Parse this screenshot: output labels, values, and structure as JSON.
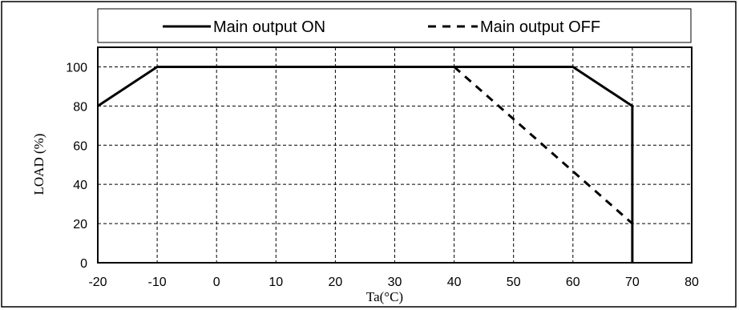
{
  "chart_data": {
    "type": "line",
    "xlabel": "Ta(°C)",
    "ylabel": "LOAD (%)",
    "xlim": [
      -20,
      80
    ],
    "ylim": [
      0,
      110
    ],
    "x_ticks": [
      -20,
      -10,
      0,
      10,
      20,
      30,
      40,
      50,
      60,
      70,
      80
    ],
    "y_ticks": [
      0,
      20,
      40,
      60,
      80,
      100
    ],
    "grid": true,
    "grid_style": "dashed",
    "legend_position": "top",
    "series": [
      {
        "name": "Main output ON",
        "line_style": "solid",
        "color": "#000000",
        "x": [
          -20,
          -10,
          40,
          60,
          70,
          70
        ],
        "y": [
          80,
          100,
          100,
          100,
          80,
          0
        ]
      },
      {
        "name": "Main output OFF",
        "line_style": "dashed",
        "color": "#000000",
        "x": [
          40,
          70
        ],
        "y": [
          100,
          20
        ]
      }
    ]
  }
}
